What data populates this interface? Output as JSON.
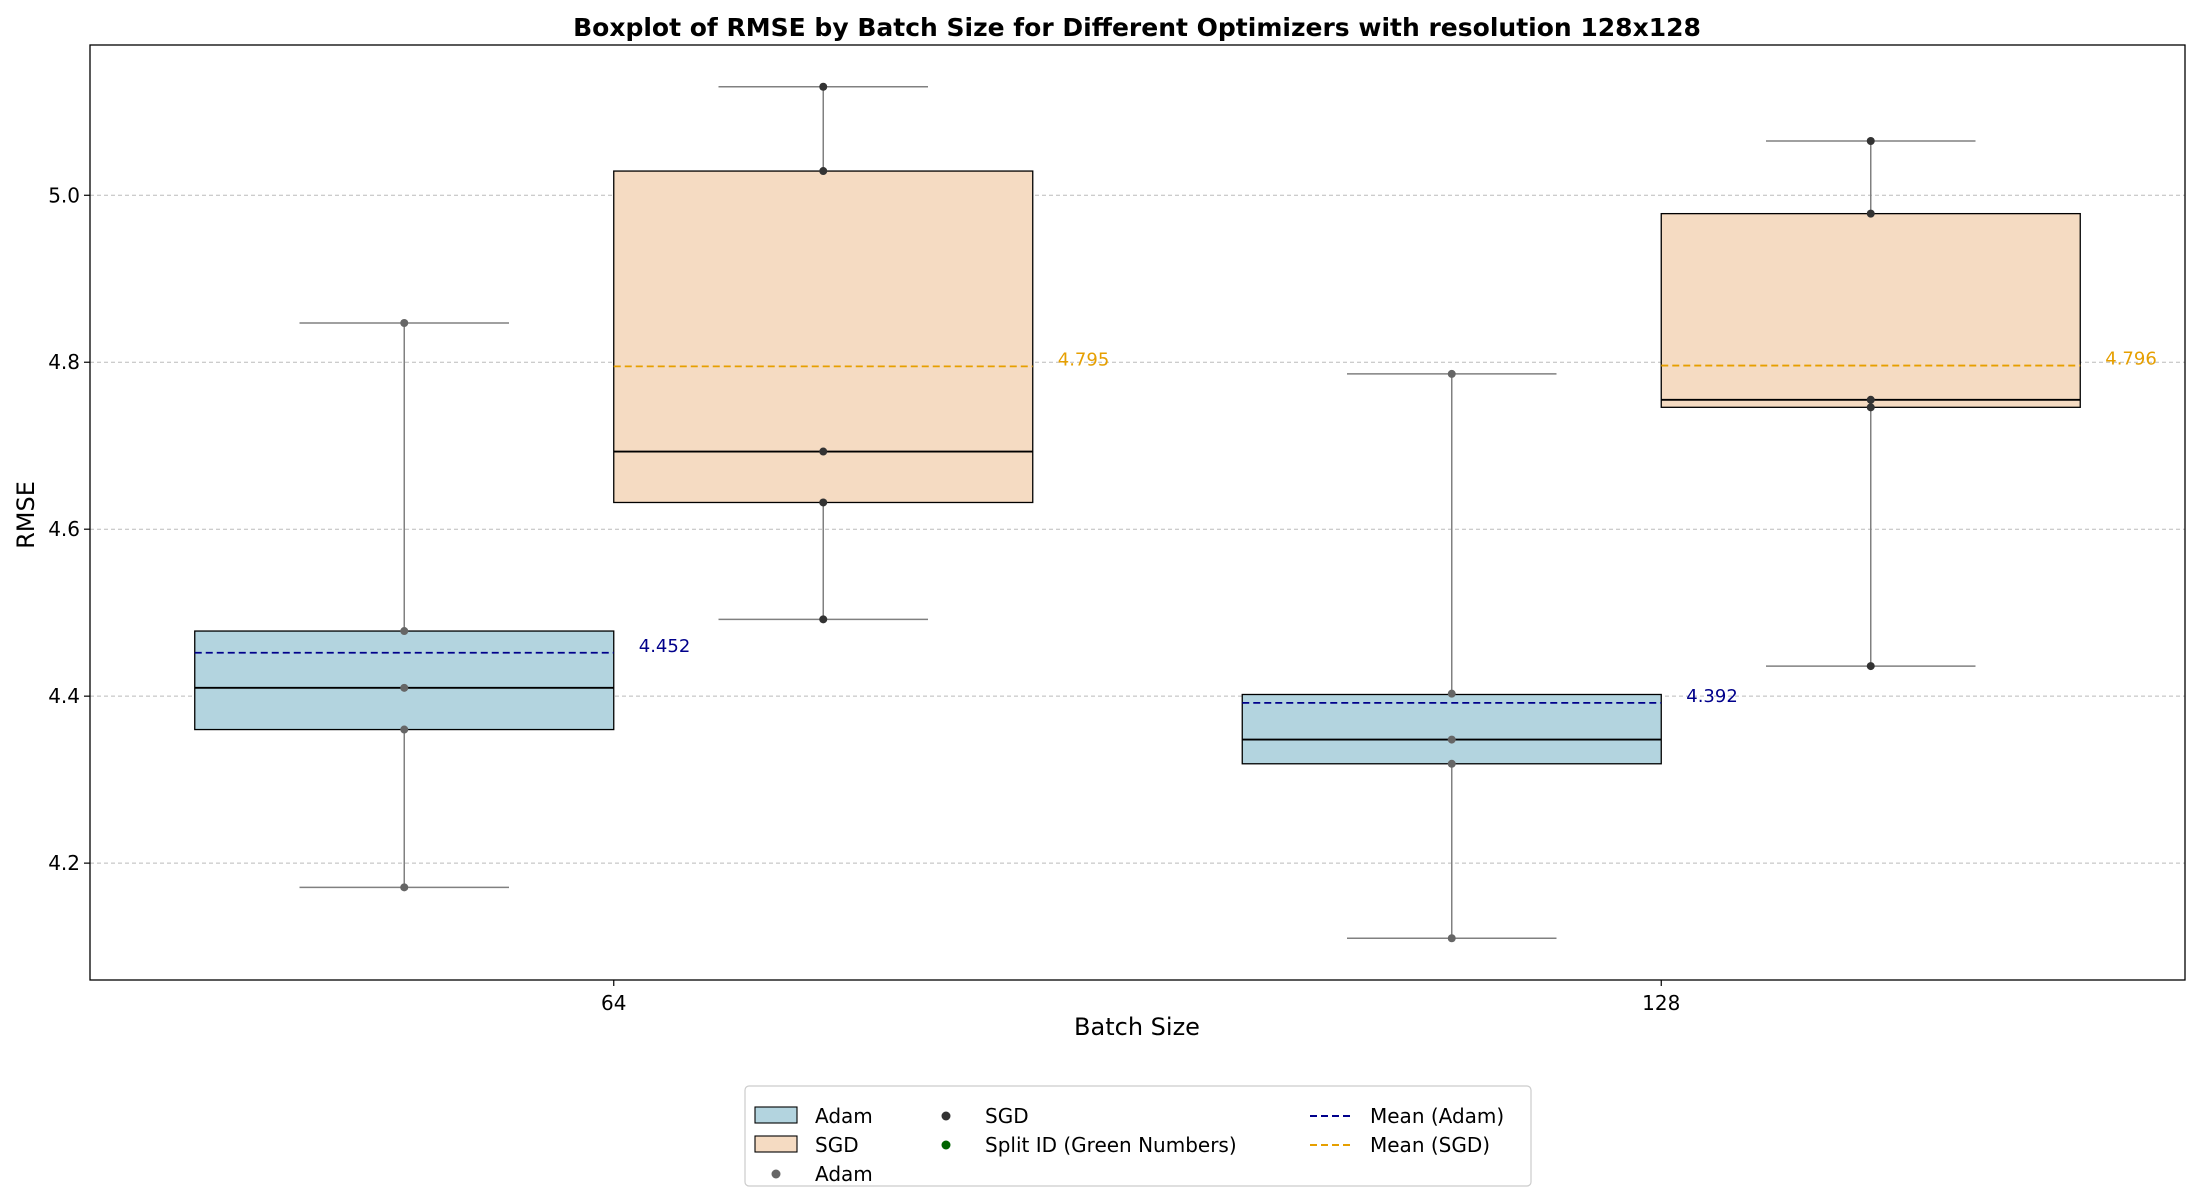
{
  "chart_data": {
    "type": "box",
    "title": "Boxplot of RMSE by Batch Size for Different Optimizers with resolution 128x128",
    "xlabel": "Batch Size",
    "ylabel": "RMSE",
    "categories": [
      "64",
      "128"
    ],
    "ylim": [
      4.06,
      5.18
    ],
    "yticks": [
      4.2,
      4.4,
      4.6,
      4.8,
      5.0
    ],
    "ytick_labels": [
      "4.2",
      "4.4",
      "4.6",
      "4.8",
      "5.0"
    ],
    "grid": "y-dashed",
    "legend_position": "bottom-center",
    "series": [
      {
        "name": "Adam",
        "fill": "#b3d4df",
        "point_color": "#666666",
        "mean_color": "#00008b",
        "boxes": [
          {
            "category": "64",
            "whisker_low": 4.171,
            "q1": 4.36,
            "median": 4.41,
            "q3": 4.478,
            "whisker_high": 4.847,
            "mean": 4.452,
            "mean_label": "4.452",
            "points": [
              4.171,
              4.36,
              4.41,
              4.478,
              4.847
            ]
          },
          {
            "category": "128",
            "whisker_low": 4.11,
            "q1": 4.319,
            "median": 4.348,
            "q3": 4.402,
            "whisker_high": 4.786,
            "mean": 4.392,
            "mean_label": "4.392",
            "points": [
              4.11,
              4.319,
              4.348,
              4.403,
              4.786
            ]
          }
        ]
      },
      {
        "name": "SGD",
        "fill": "#f5dbc2",
        "point_color": "#333333",
        "mean_color": "#e69f00",
        "boxes": [
          {
            "category": "64",
            "whisker_low": 4.492,
            "q1": 4.632,
            "median": 4.693,
            "q3": 5.029,
            "whisker_high": 5.13,
            "mean": 4.795,
            "mean_label": "4.795",
            "points": [
              4.492,
              4.632,
              4.693,
              5.029,
              5.13
            ]
          },
          {
            "category": "128",
            "whisker_low": 4.436,
            "q1": 4.746,
            "median": 4.755,
            "q3": 4.978,
            "whisker_high": 5.065,
            "mean": 4.796,
            "mean_label": "4.796",
            "points": [
              4.436,
              4.746,
              4.755,
              4.978,
              5.065
            ]
          }
        ]
      }
    ],
    "legend": [
      {
        "label": "Adam",
        "kind": "patch",
        "color": "#b3d4df"
      },
      {
        "label": "SGD",
        "kind": "patch",
        "color": "#f5dbc2"
      },
      {
        "label": "Adam",
        "kind": "dot",
        "color": "#666666"
      },
      {
        "label": "SGD",
        "kind": "dot",
        "color": "#333333"
      },
      {
        "label": "Split ID (Green Numbers)",
        "kind": "dot",
        "color": "#006400"
      },
      {
        "label": "Mean (Adam)",
        "kind": "dash",
        "color": "#00008b"
      },
      {
        "label": "Mean (SGD)",
        "kind": "dash",
        "color": "#e69f00"
      }
    ]
  }
}
